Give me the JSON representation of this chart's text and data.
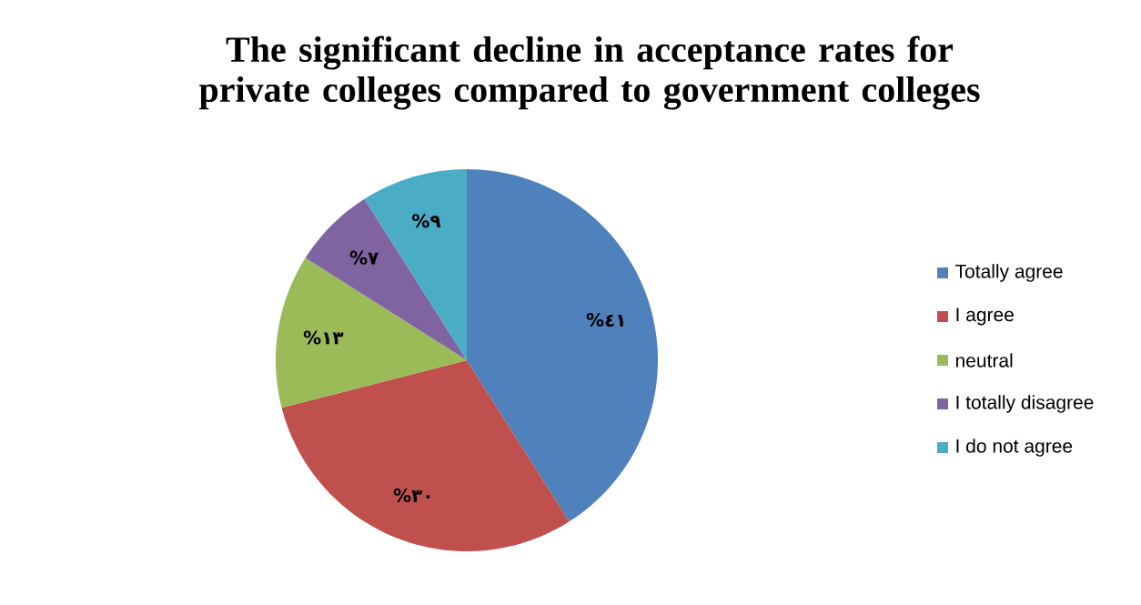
{
  "chart_data": {
    "type": "pie",
    "title": "The significant decline in acceptance rates for private colleges compared to government colleges",
    "categories": [
      "Totally agree",
      "I agree",
      "neutral",
      "I totally disagree",
      "I do not agree"
    ],
    "values": [
      41,
      30,
      13,
      7,
      9
    ],
    "value_labels": [
      "%٤١",
      "%٣٠",
      "%١٣",
      "%٧",
      "%٩"
    ],
    "colors": [
      "#4f81bd",
      "#c0504d",
      "#9bbb59",
      "#8064a2",
      "#4bacc6"
    ],
    "legend": "right"
  }
}
